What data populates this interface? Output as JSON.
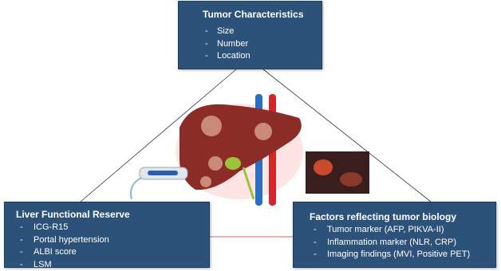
{
  "boxes": [
    {
      "title": "Tumor Characteristics",
      "items": [
        "Size",
        "Number",
        "Location"
      ]
    },
    {
      "title": "Liver Functional Reserve",
      "items": [
        "ICG-R15",
        "Portal hypertension",
        "ALBI score",
        "LSM"
      ]
    },
    {
      "title": "Factors reflecting tumor biology",
      "items": [
        "Tumor marker (AFP, PIKVA-II)",
        "Inflammation marker (NLR, CRP)",
        "Imaging findings (MVI, Positive PET)"
      ]
    }
  ]
}
